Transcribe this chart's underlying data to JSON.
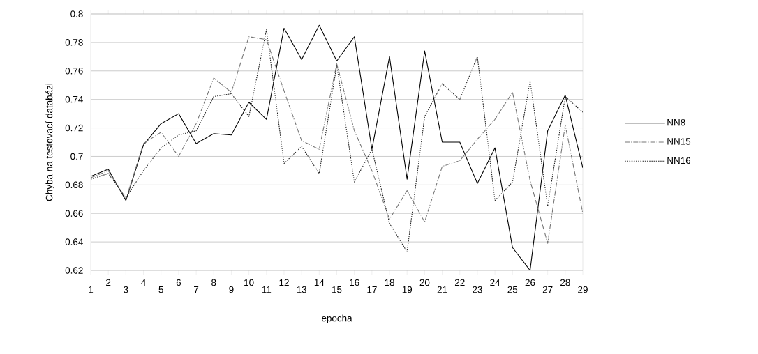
{
  "chart_data": {
    "type": "line",
    "xlabel": "epocha",
    "ylabel": "Chyba na testovací databázi",
    "categories": [
      "1",
      "2",
      "3",
      "4",
      "5",
      "6",
      "7",
      "8",
      "9",
      "10",
      "11",
      "12",
      "13",
      "14",
      "15",
      "16",
      "17",
      "18",
      "19",
      "20",
      "21",
      "22",
      "23",
      "24",
      "25",
      "26",
      "27",
      "28",
      "29"
    ],
    "series": [
      {
        "name": "NN8",
        "color": "#000000",
        "line_style": "solid",
        "values": [
          0.686,
          0.691,
          0.669,
          0.708,
          0.723,
          0.73,
          0.709,
          0.716,
          0.715,
          0.738,
          0.726,
          0.79,
          0.768,
          0.792,
          0.767,
          0.784,
          0.705,
          0.77,
          0.684,
          0.774,
          0.71,
          0.71,
          0.681,
          0.706,
          0.636,
          0.62,
          0.718,
          0.743,
          0.692
        ]
      },
      {
        "name": "NN15",
        "color": "#777777",
        "line_style": "dashed",
        "values": [
          0.685,
          0.69,
          0.67,
          0.709,
          0.717,
          0.7,
          0.723,
          0.755,
          0.745,
          0.784,
          0.782,
          0.746,
          0.711,
          0.705,
          0.765,
          0.718,
          0.69,
          0.656,
          0.676,
          0.654,
          0.693,
          0.697,
          0.712,
          0.726,
          0.745,
          0.683,
          0.639,
          0.722,
          0.66
        ]
      },
      {
        "name": "NN16",
        "color": "#222222",
        "line_style": "dotted",
        "values": [
          0.684,
          0.688,
          0.671,
          0.69,
          0.706,
          0.715,
          0.718,
          0.742,
          0.744,
          0.728,
          0.789,
          0.695,
          0.707,
          0.688,
          0.764,
          0.682,
          0.705,
          0.653,
          0.633,
          0.728,
          0.751,
          0.74,
          0.77,
          0.669,
          0.682,
          0.753,
          0.665,
          0.742,
          0.731
        ]
      }
    ],
    "ylim": [
      0.62,
      0.8
    ],
    "yticks": [
      0.62,
      0.64,
      0.66,
      0.68,
      0.7,
      0.72,
      0.74,
      0.76,
      0.78,
      0.8
    ],
    "grid": "y",
    "legend": "right",
    "marker": "none"
  }
}
